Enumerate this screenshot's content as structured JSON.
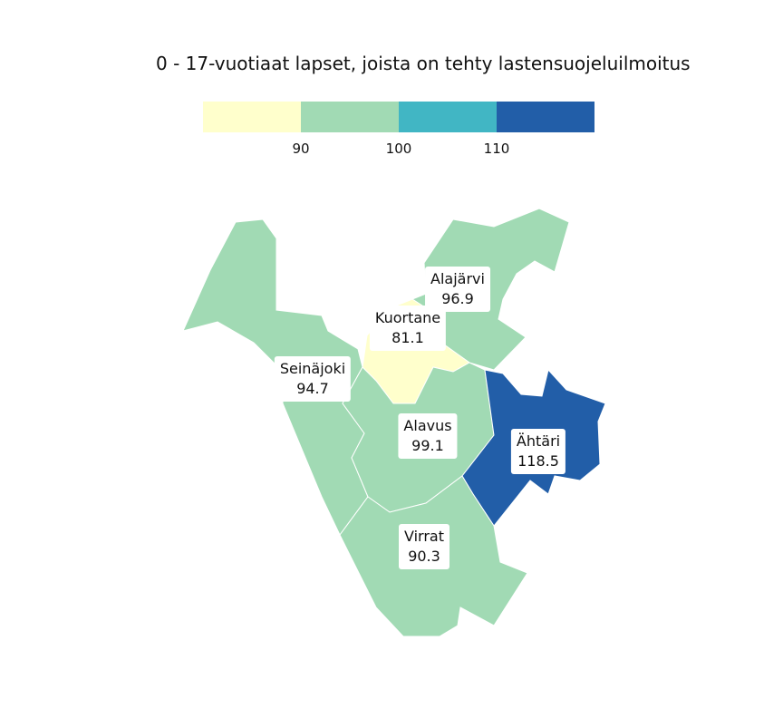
{
  "title": "0 - 17-vuotiaat lapset, joista on tehty lastensuojeluilmoitus",
  "legend": {
    "colors": [
      "#ffffcc",
      "#a1dab4",
      "#41b6c4",
      "#225ea8"
    ],
    "ticks": [
      "90",
      "100",
      "110"
    ]
  },
  "regions": [
    {
      "name": "Alajärvi",
      "value": "96.9",
      "color": "#a1dab4"
    },
    {
      "name": "Kuortane",
      "value": "81.1",
      "color": "#ffffcc"
    },
    {
      "name": "Seinäjoki",
      "value": "94.7",
      "color": "#a1dab4"
    },
    {
      "name": "Alavus",
      "value": "99.1",
      "color": "#a1dab4"
    },
    {
      "name": "Ähtäri",
      "value": "118.5",
      "color": "#225ea8"
    },
    {
      "name": "Virrat",
      "value": "90.3",
      "color": "#a1dab4"
    }
  ]
}
